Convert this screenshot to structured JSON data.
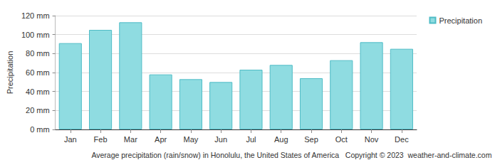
{
  "chart_data": {
    "type": "bar",
    "title": "Average precipitation (rain/snow) in Honolulu, the United States of America   Copyright © 2023  weather-and-climate.com",
    "ylabel": "Precipitation",
    "categories": [
      "Jan",
      "Feb",
      "Mar",
      "Apr",
      "May",
      "Jun",
      "Jul",
      "Aug",
      "Sep",
      "Oct",
      "Nov",
      "Dec"
    ],
    "series": [
      {
        "name": "Precipitation",
        "color": "#8fdce1",
        "values": [
          91,
          105,
          113,
          58,
          53,
          50,
          63,
          68,
          54,
          73,
          92,
          85
        ]
      }
    ],
    "ylim": [
      0,
      120
    ],
    "yticks": [
      {
        "value": 0,
        "label": "0 mm"
      },
      {
        "value": 20,
        "label": "20 mm"
      },
      {
        "value": 40,
        "label": "40 mm"
      },
      {
        "value": 60,
        "label": "60 mm"
      },
      {
        "value": 80,
        "label": "80 mm"
      },
      {
        "value": 100,
        "label": "100 mm"
      },
      {
        "value": 120,
        "label": "120 mm"
      }
    ],
    "grid": true,
    "legend": "top-right"
  }
}
